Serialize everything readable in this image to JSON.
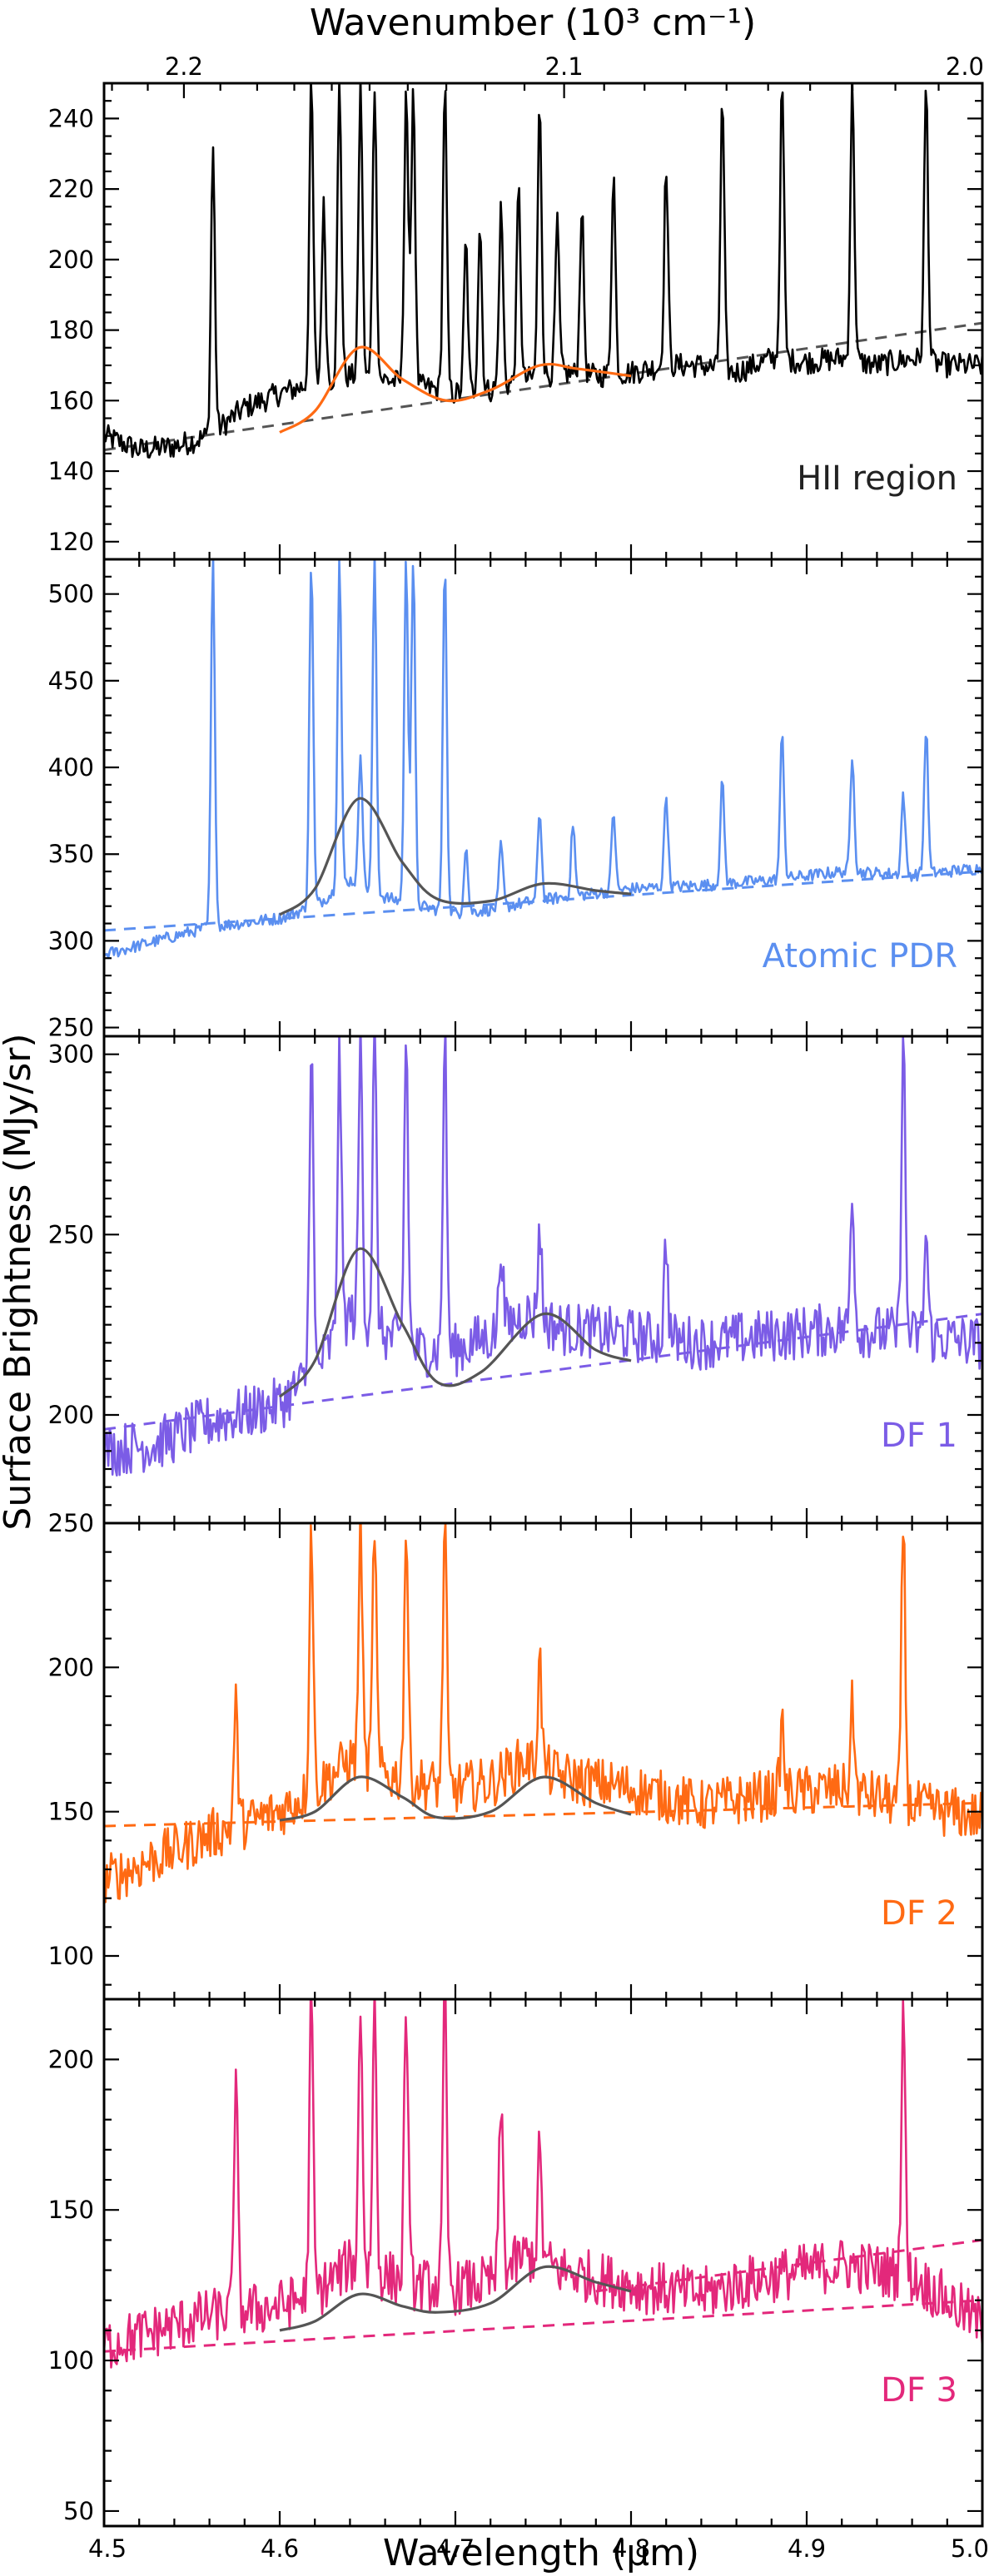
{
  "chart_data": {
    "type": "line",
    "title": "",
    "xlabel": "Wavelength (μm)",
    "x2label": "Wavenumber (10³ cm⁻¹)",
    "ylabel": "Surface Brightness (MJy/sr)",
    "xlim": [
      4.5,
      5.0
    ],
    "x_ticks": [
      "4.5",
      "4.6",
      "4.7",
      "4.8",
      "4.9",
      "5.0"
    ],
    "x2_ticks": [
      "2.2",
      "2.1",
      "2.0"
    ],
    "panels": [
      {
        "name": "HII region",
        "color": "#000000",
        "model_color": "#ff6a13",
        "ylim": [
          115,
          250
        ],
        "y_ticks": [
          120,
          140,
          160,
          180,
          200,
          220,
          240
        ],
        "baseline": {
          "x": [
            4.5,
            5.0
          ],
          "y": [
            146,
            182
          ]
        },
        "continuum": [
          [
            4.5,
            150
          ],
          [
            4.52,
            146
          ],
          [
            4.54,
            147
          ],
          [
            4.56,
            150
          ],
          [
            4.58,
            158
          ],
          [
            4.6,
            162
          ],
          [
            4.62,
            165
          ],
          [
            4.64,
            167
          ],
          [
            4.66,
            166
          ],
          [
            4.68,
            164
          ],
          [
            4.7,
            162
          ],
          [
            4.72,
            163
          ],
          [
            4.74,
            166
          ],
          [
            4.76,
            168
          ],
          [
            4.78,
            167
          ],
          [
            4.8,
            168
          ],
          [
            4.82,
            170
          ],
          [
            4.84,
            170
          ],
          [
            4.86,
            168
          ],
          [
            4.88,
            172
          ],
          [
            4.9,
            171
          ],
          [
            4.92,
            172
          ],
          [
            4.94,
            170
          ],
          [
            4.96,
            172
          ],
          [
            4.98,
            170
          ],
          [
            5.0,
            170
          ]
        ],
        "noise": 3.5,
        "lines": [
          [
            4.562,
            232
          ],
          [
            4.618,
            250
          ],
          [
            4.625,
            215
          ],
          [
            4.634,
            250
          ],
          [
            4.646,
            250
          ],
          [
            4.654,
            250
          ],
          [
            4.672,
            250
          ],
          [
            4.676,
            250
          ],
          [
            4.694,
            250
          ],
          [
            4.706,
            205
          ],
          [
            4.714,
            210
          ],
          [
            4.726,
            215
          ],
          [
            4.736,
            220
          ],
          [
            4.748,
            245
          ],
          [
            4.758,
            210
          ],
          [
            4.772,
            215
          ],
          [
            4.79,
            225
          ],
          [
            4.82,
            227
          ],
          [
            4.852,
            245
          ],
          [
            4.886,
            250
          ],
          [
            4.926,
            250
          ],
          [
            4.968,
            250
          ]
        ],
        "model": [
          [
            4.6,
            151
          ],
          [
            4.62,
            157
          ],
          [
            4.645,
            175
          ],
          [
            4.67,
            166
          ],
          [
            4.695,
            160
          ],
          [
            4.72,
            163
          ],
          [
            4.748,
            170
          ],
          [
            4.77,
            169
          ],
          [
            4.8,
            167
          ]
        ]
      },
      {
        "name": "Atomic PDR",
        "color": "#5b8ff0",
        "model_color": "#555555",
        "ylim": [
          245,
          520
        ],
        "y_ticks": [
          250,
          300,
          350,
          400,
          450,
          500
        ],
        "baseline": {
          "x": [
            4.5,
            5.0
          ],
          "y": [
            306,
            340
          ]
        },
        "continuum": [
          [
            4.5,
            292
          ],
          [
            4.53,
            300
          ],
          [
            4.56,
            308
          ],
          [
            4.6,
            313
          ],
          [
            4.62,
            320
          ],
          [
            4.64,
            335
          ],
          [
            4.66,
            325
          ],
          [
            4.68,
            320
          ],
          [
            4.7,
            316
          ],
          [
            4.72,
            318
          ],
          [
            4.74,
            322
          ],
          [
            4.76,
            325
          ],
          [
            4.8,
            330
          ],
          [
            4.84,
            332
          ],
          [
            4.88,
            335
          ],
          [
            4.92,
            340
          ],
          [
            4.96,
            338
          ],
          [
            5.0,
            342
          ]
        ],
        "noise": 3.5,
        "lines": [
          [
            4.562,
            520
          ],
          [
            4.618,
            520
          ],
          [
            4.634,
            520
          ],
          [
            4.646,
            410
          ],
          [
            4.654,
            520
          ],
          [
            4.672,
            520
          ],
          [
            4.676,
            520
          ],
          [
            4.694,
            520
          ],
          [
            4.706,
            355
          ],
          [
            4.726,
            355
          ],
          [
            4.748,
            375
          ],
          [
            4.767,
            368
          ],
          [
            4.79,
            375
          ],
          [
            4.82,
            385
          ],
          [
            4.852,
            392
          ],
          [
            4.886,
            420
          ],
          [
            4.926,
            408
          ],
          [
            4.955,
            385
          ],
          [
            4.968,
            423
          ]
        ],
        "model": [
          [
            4.6,
            315
          ],
          [
            4.62,
            330
          ],
          [
            4.645,
            382
          ],
          [
            4.67,
            345
          ],
          [
            4.69,
            324
          ],
          [
            4.72,
            323
          ],
          [
            4.75,
            333
          ],
          [
            4.78,
            329
          ],
          [
            4.8,
            327
          ]
        ]
      },
      {
        "name": "DF 1",
        "color": "#7b5ce6",
        "model_color": "#555555",
        "ylim": [
          170,
          305
        ],
        "y_ticks": [
          200,
          250,
          300
        ],
        "baseline": {
          "x": [
            4.5,
            5.0
          ],
          "y": [
            196,
            228
          ]
        },
        "continuum": [
          [
            4.5,
            190
          ],
          [
            4.53,
            192
          ],
          [
            4.56,
            198
          ],
          [
            4.6,
            203
          ],
          [
            4.62,
            212
          ],
          [
            4.64,
            228
          ],
          [
            4.66,
            222
          ],
          [
            4.68,
            218
          ],
          [
            4.7,
            218
          ],
          [
            4.72,
            222
          ],
          [
            4.74,
            228
          ],
          [
            4.76,
            224
          ],
          [
            4.8,
            222
          ],
          [
            4.84,
            220
          ],
          [
            4.88,
            222
          ],
          [
            4.92,
            224
          ],
          [
            4.96,
            222
          ],
          [
            5.0,
            220
          ]
        ],
        "noise": 7.5,
        "lines": [
          [
            4.618,
            305
          ],
          [
            4.634,
            300
          ],
          [
            4.646,
            305
          ],
          [
            4.654,
            305
          ],
          [
            4.672,
            305
          ],
          [
            4.694,
            305
          ],
          [
            4.726,
            248
          ],
          [
            4.748,
            252
          ],
          [
            4.82,
            248
          ],
          [
            4.926,
            262
          ],
          [
            4.955,
            305
          ],
          [
            4.968,
            250
          ]
        ],
        "model": [
          [
            4.6,
            205
          ],
          [
            4.62,
            215
          ],
          [
            4.645,
            246
          ],
          [
            4.67,
            225
          ],
          [
            4.69,
            209
          ],
          [
            4.715,
            212
          ],
          [
            4.75,
            228
          ],
          [
            4.78,
            218
          ],
          [
            4.8,
            215
          ]
        ]
      },
      {
        "name": "DF 2",
        "color": "#ff6a13",
        "model_color": "#555555",
        "ylim": [
          85,
          250
        ],
        "y_ticks": [
          100,
          150,
          200,
          250
        ],
        "baseline": {
          "x": [
            4.5,
            5.0
          ],
          "y": [
            145,
            153
          ]
        },
        "continuum": [
          [
            4.5,
            126
          ],
          [
            4.53,
            134
          ],
          [
            4.56,
            142
          ],
          [
            4.6,
            150
          ],
          [
            4.62,
            158
          ],
          [
            4.64,
            168
          ],
          [
            4.66,
            163
          ],
          [
            4.68,
            160
          ],
          [
            4.7,
            158
          ],
          [
            4.72,
            160
          ],
          [
            4.74,
            168
          ],
          [
            4.76,
            162
          ],
          [
            4.8,
            158
          ],
          [
            4.84,
            152
          ],
          [
            4.88,
            156
          ],
          [
            4.92,
            158
          ],
          [
            4.96,
            152
          ],
          [
            5.0,
            148
          ]
        ],
        "noise": 9.0,
        "lines": [
          [
            4.575,
            187
          ],
          [
            4.618,
            250
          ],
          [
            4.646,
            250
          ],
          [
            4.654,
            250
          ],
          [
            4.672,
            250
          ],
          [
            4.694,
            250
          ],
          [
            4.748,
            203
          ],
          [
            4.886,
            180
          ],
          [
            4.926,
            187
          ],
          [
            4.955,
            250
          ]
        ],
        "model": [
          [
            4.6,
            147
          ],
          [
            4.62,
            150
          ],
          [
            4.645,
            162
          ],
          [
            4.67,
            155
          ],
          [
            4.69,
            148
          ],
          [
            4.72,
            150
          ],
          [
            4.75,
            162
          ],
          [
            4.78,
            153
          ],
          [
            4.8,
            149
          ]
        ]
      },
      {
        "name": "DF 3",
        "color": "#e3287b",
        "model_color": "#555555",
        "ylim": [
          45,
          220
        ],
        "y_ticks": [
          50,
          100,
          150,
          200
        ],
        "baseline": {
          "x": [
            4.5,
            5.0
          ],
          "y": [
            103,
            120
          ]
        },
        "baseline2": {
          "x": [
            4.78,
            5.0
          ],
          "y": [
            123,
            140
          ]
        },
        "continuum": [
          [
            4.5,
            105
          ],
          [
            4.53,
            110
          ],
          [
            4.56,
            115
          ],
          [
            4.6,
            118
          ],
          [
            4.62,
            122
          ],
          [
            4.64,
            132
          ],
          [
            4.66,
            128
          ],
          [
            4.68,
            125
          ],
          [
            4.7,
            124
          ],
          [
            4.72,
            126
          ],
          [
            4.74,
            135
          ],
          [
            4.76,
            130
          ],
          [
            4.8,
            125
          ],
          [
            4.84,
            122
          ],
          [
            4.88,
            128
          ],
          [
            4.92,
            132
          ],
          [
            4.96,
            128
          ],
          [
            5.0,
            112
          ]
        ],
        "noise": 9.0,
        "lines": [
          [
            4.575,
            193
          ],
          [
            4.618,
            220
          ],
          [
            4.646,
            220
          ],
          [
            4.654,
            220
          ],
          [
            4.672,
            220
          ],
          [
            4.694,
            220
          ],
          [
            4.726,
            185
          ],
          [
            4.748,
            170
          ],
          [
            4.955,
            220
          ]
        ],
        "model": [
          [
            4.6,
            110
          ],
          [
            4.62,
            113
          ],
          [
            4.645,
            122
          ],
          [
            4.67,
            118
          ],
          [
            4.69,
            116
          ],
          [
            4.72,
            119
          ],
          [
            4.75,
            131
          ],
          [
            4.78,
            126
          ],
          [
            4.8,
            123
          ]
        ]
      }
    ]
  }
}
